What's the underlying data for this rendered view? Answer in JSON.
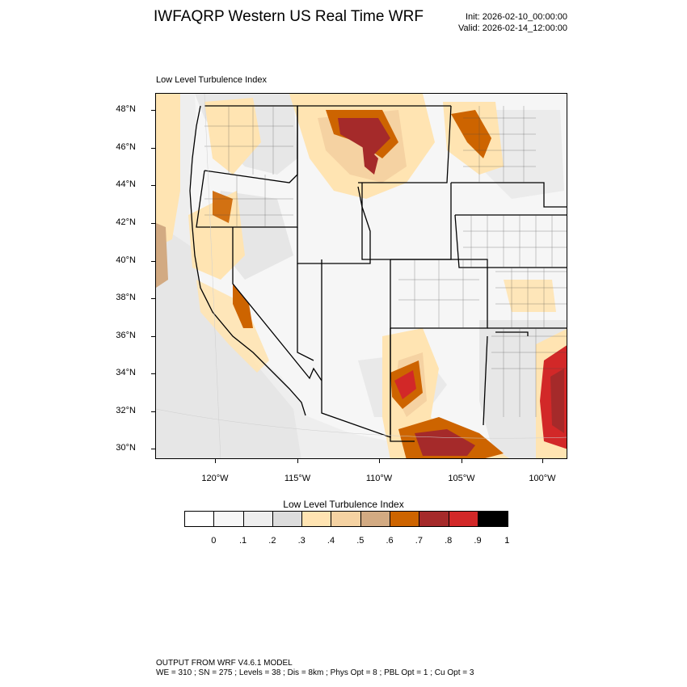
{
  "header": {
    "title": "IWFAQRP Western US Real Time WRF",
    "init": "Init: 2026-02-10_00:00:00",
    "valid": "Valid: 2026-02-14_12:00:00"
  },
  "map": {
    "subtitle": "Low Level Turbulence Index",
    "lat_labels": [
      "48°N",
      "46°N",
      "44°N",
      "42°N",
      "40°N",
      "38°N",
      "36°N",
      "34°N",
      "32°N",
      "30°N"
    ],
    "lon_labels": [
      "120°W",
      "115°W",
      "110°W",
      "105°W",
      "100°W"
    ]
  },
  "colorbar": {
    "title": "Low Level Turbulence Index",
    "labels": [
      "0",
      ".1",
      ".2",
      ".3",
      ".4",
      ".5",
      ".6",
      ".7",
      ".8",
      ".9",
      "1"
    ],
    "colors": [
      "#ffffff",
      "#f7f7f7",
      "#eeeeee",
      "#dcdcdc",
      "#ffe4b2",
      "#f5d2a2",
      "#d2aa82",
      "#cd6400",
      "#a52a2a",
      "#d22828",
      "#000000"
    ]
  },
  "footer": {
    "line1": "OUTPUT FROM WRF V4.6.1 MODEL",
    "line2": "WE = 310 ; SN = 275 ; Levels = 38 ; Dis = 8km ; Phys Opt = 8 ; PBL Opt = 1 ; Cu Opt = 3"
  }
}
